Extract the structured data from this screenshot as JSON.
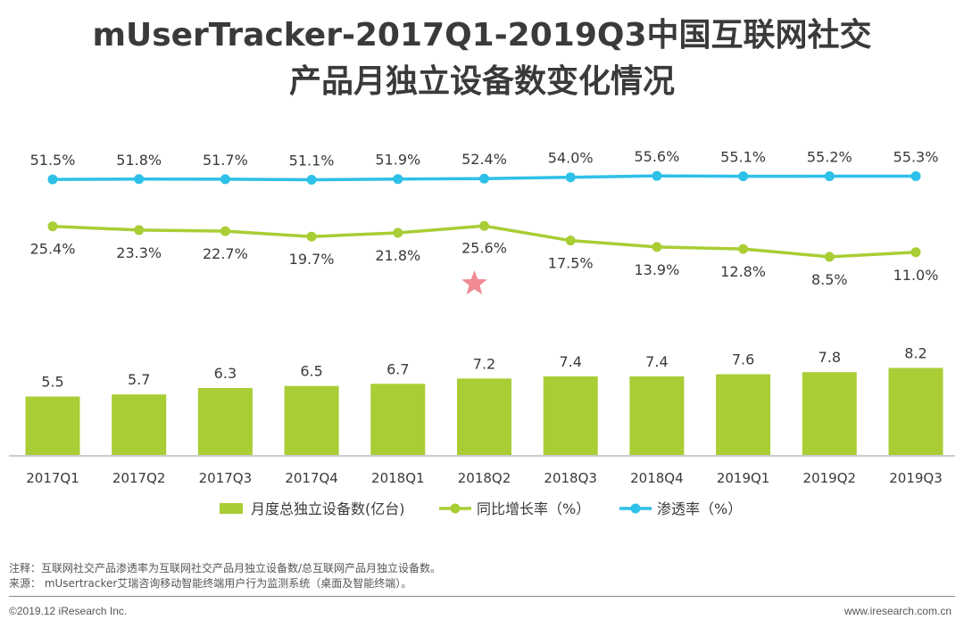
{
  "title_line1": "mUserTracker-2017Q1-2019Q3中国互联网社交",
  "title_line2": "产品月独立设备数变化情况",
  "chart_data": {
    "type": "bar+line",
    "categories": [
      "2017Q1",
      "2017Q2",
      "2017Q3",
      "2017Q4",
      "2018Q1",
      "2018Q2",
      "2018Q3",
      "2018Q4",
      "2019Q1",
      "2019Q2",
      "2019Q3"
    ],
    "series": [
      {
        "name": "月度总独立设备数(亿台)",
        "type": "bar",
        "color": "#a9cd35",
        "values": [
          5.5,
          5.7,
          6.3,
          6.5,
          6.7,
          7.2,
          7.4,
          7.4,
          7.6,
          7.8,
          8.2
        ],
        "labels": [
          "5.5",
          "5.7",
          "6.3",
          "6.5",
          "6.7",
          "7.2",
          "7.4",
          "7.4",
          "7.6",
          "7.8",
          "8.2"
        ]
      },
      {
        "name": "同比增长率（%）",
        "type": "line",
        "color": "#a9cd35",
        "values": [
          25.4,
          23.3,
          22.7,
          19.7,
          21.8,
          25.6,
          17.5,
          13.9,
          12.8,
          8.5,
          11.0
        ],
        "labels": [
          "25.4%",
          "23.3%",
          "22.7%",
          "19.7%",
          "21.8%",
          "25.6%",
          "17.5%",
          "13.9%",
          "12.8%",
          "8.5%",
          "11.0%"
        ]
      },
      {
        "name": "渗透率（%）",
        "type": "line",
        "color": "#2ec0e8",
        "values": [
          51.5,
          51.8,
          51.7,
          51.1,
          51.9,
          52.4,
          54.0,
          55.6,
          55.1,
          55.2,
          55.3
        ],
        "labels": [
          "51.5%",
          "51.8%",
          "51.7%",
          "51.1%",
          "51.9%",
          "52.4%",
          "54.0%",
          "55.6%",
          "55.1%",
          "55.2%",
          "55.3%"
        ]
      }
    ],
    "annotation": {
      "type": "star",
      "category": "2018Q2",
      "color": "#f08a94"
    },
    "legend_position": "bottom",
    "grid": false
  },
  "footnotes": {
    "note": "注释：互联网社交产品渗透率为互联网社交产品月独立设备数/总互联网产品月独立设备数。",
    "source": "来源： mUsertracker艾瑞咨询移动智能终端用户行为监测系统（桌面及智能终端）。"
  },
  "footer": {
    "copyright": "©2019.12 iResearch Inc.",
    "website": "www.iresearch.com.cn"
  }
}
